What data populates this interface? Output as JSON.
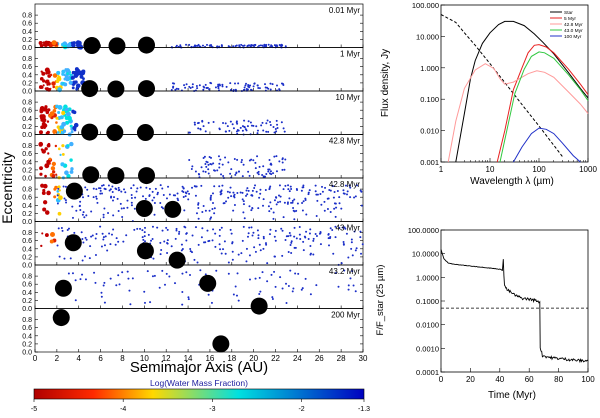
{
  "chart_data": [
    {
      "type": "scatter",
      "title": "",
      "xlabel": "Semimajor Axis (AU)",
      "ylabel": "Eccentricity",
      "xlim": [
        0,
        30
      ],
      "ylim": [
        0,
        1
      ],
      "xticks": [
        0,
        2,
        4,
        6,
        8,
        10,
        12,
        14,
        16,
        18,
        20,
        22,
        24,
        26,
        28,
        30
      ],
      "yticks": [
        0.0,
        0.2,
        0.4,
        0.6,
        0.8
      ],
      "panels": [
        {
          "time_label": "0.01 Myr",
          "giant_planets": [
            {
              "a": 5.2,
              "e": 0.05
            },
            {
              "a": 7.5,
              "e": 0.04
            },
            {
              "a": 10.2,
              "e": 0.06
            }
          ],
          "inner_disk": {
            "a_range": [
              0.5,
              4.5
            ],
            "e_max": 0.12,
            "count": 55
          },
          "outer_disk": {
            "a_range": [
              12.5,
              23.0
            ],
            "e_max": 0.07,
            "count": 95
          }
        },
        {
          "time_label": "1 Myr",
          "giant_planets": [
            {
              "a": 5.0,
              "e": 0.06
            },
            {
              "a": 7.4,
              "e": 0.05
            },
            {
              "a": 10.2,
              "e": 0.06
            }
          ],
          "inner_disk": {
            "a_range": [
              0.5,
              4.5
            ],
            "e_max": 0.55,
            "count": 85
          },
          "outer_disk": {
            "a_range": [
              12.5,
              23.0
            ],
            "e_max": 0.2,
            "count": 90
          }
        },
        {
          "time_label": "10 Myr",
          "giant_planets": [
            {
              "a": 5.0,
              "e": 0.06
            },
            {
              "a": 7.3,
              "e": 0.05
            },
            {
              "a": 10.1,
              "e": 0.05
            }
          ],
          "inner_disk": {
            "a_range": [
              0.5,
              3.8
            ],
            "e_max": 0.7,
            "count": 80
          },
          "outer_disk": {
            "a_range": [
              14.0,
              23.0
            ],
            "e_max": 0.35,
            "count": 70
          }
        },
        {
          "time_label": "42.8 Myr",
          "giant_planets": [
            {
              "a": 5.1,
              "e": 0.08
            },
            {
              "a": 7.4,
              "e": 0.06
            },
            {
              "a": 10.2,
              "e": 0.06
            }
          ],
          "inner_disk": {
            "a_range": [
              0.5,
              3.4
            ],
            "e_max": 0.85,
            "count": 40
          },
          "outer_disk": {
            "a_range": [
              14.0,
              23.0
            ],
            "e_max": 0.55,
            "count": 90
          }
        },
        {
          "time_label": "42.8 Myr",
          "giant_planets": [
            {
              "a": 3.6,
              "e": 0.75
            },
            {
              "a": 10.0,
              "e": 0.32
            },
            {
              "a": 12.6,
              "e": 0.3
            }
          ],
          "inner_disk": {
            "a_range": [
              0.5,
              2.5
            ],
            "e_max": 0.9,
            "count": 18
          },
          "outer_disk": {
            "a_range": [
              2.0,
              30.0
            ],
            "e_max": 0.9,
            "count": 320
          }
        },
        {
          "time_label": "43 Myr",
          "giant_planets": [
            {
              "a": 3.5,
              "e": 0.55
            },
            {
              "a": 10.1,
              "e": 0.35
            },
            {
              "a": 13.0,
              "e": 0.12
            }
          ],
          "inner_disk": {
            "a_range": [
              0.5,
              1.8
            ],
            "e_max": 0.8,
            "count": 6
          },
          "outer_disk": {
            "a_range": [
              2.0,
              30.0
            ],
            "e_max": 0.95,
            "count": 240
          }
        },
        {
          "time_label": "43.2 Myr",
          "giant_planets": [
            {
              "a": 2.6,
              "e": 0.5
            },
            {
              "a": 15.8,
              "e": 0.62
            },
            {
              "a": 20.5,
              "e": 0.06
            }
          ],
          "outer_disk": {
            "a_range": [
              3.0,
              30.0
            ],
            "e_max": 0.95,
            "count": 95
          }
        },
        {
          "time_label": "200 Myr",
          "giant_planets": [
            {
              "a": 2.4,
              "e": 0.85
            },
            {
              "a": 17.0,
              "e": 0.2
            }
          ]
        }
      ],
      "colorbar": {
        "label": "Log(Water Mass Fraction)",
        "range": [
          -5,
          -1.3
        ],
        "ticks": [
          "-5",
          "-4",
          "-3",
          "-2",
          "-1.3"
        ],
        "colors": [
          "#b00000",
          "#ff2a00",
          "#ffd800",
          "#00e0e0",
          "#0000c0"
        ]
      }
    },
    {
      "type": "line",
      "title": "",
      "xlabel": "Wavelength λ (µm)",
      "ylabel": "Flux density, Jy",
      "xscale": "log",
      "yscale": "log",
      "xlim": [
        1,
        1000
      ],
      "ylim": [
        0.001,
        100
      ],
      "xticks": [
        "1",
        "10",
        "100",
        "1000"
      ],
      "yticks": [
        "0.001",
        "0.010",
        "0.100",
        "1.000",
        "10.000",
        "100.000"
      ],
      "legend_position": "top-right",
      "series": [
        {
          "name": "Star",
          "color": "#000000",
          "style": "dashed",
          "points": [
            [
              1,
              50
            ],
            [
              2,
              28
            ],
            [
              3,
              13
            ],
            [
              5,
              5.2
            ],
            [
              10,
              1.35
            ],
            [
              20,
              0.34
            ],
            [
              50,
              0.055
            ],
            [
              100,
              0.014
            ],
            [
              300,
              0.0015
            ],
            [
              500,
              0.00055
            ]
          ]
        },
        {
          "name": "Total",
          "color": "#000000",
          "style": "solid",
          "points": [
            [
              2,
              0.001
            ],
            [
              3,
              0.035
            ],
            [
              4,
              0.45
            ],
            [
              5,
              1.7
            ],
            [
              7,
              6
            ],
            [
              10,
              13
            ],
            [
              15,
              24
            ],
            [
              20,
              30
            ],
            [
              30,
              30
            ],
            [
              50,
              22
            ],
            [
              80,
              12
            ],
            [
              120,
              6.5
            ],
            [
              200,
              2.8
            ],
            [
              400,
              0.7
            ],
            [
              700,
              0.22
            ],
            [
              1000,
              0.11
            ]
          ]
        },
        {
          "name": "5 Myr",
          "color": "#e82020",
          "style": "solid",
          "points": [
            [
              14,
              0.001
            ],
            [
              20,
              0.01
            ],
            [
              30,
              0.2
            ],
            [
              45,
              1.0
            ],
            [
              60,
              3.0
            ],
            [
              80,
              5.2
            ],
            [
              100,
              5.5
            ],
            [
              140,
              4.6
            ],
            [
              200,
              3.0
            ],
            [
              400,
              0.9
            ],
            [
              700,
              0.3
            ],
            [
              1000,
              0.14
            ]
          ]
        },
        {
          "name": "42.8 Myr",
          "color": "#ff9a9a",
          "style": "solid",
          "points": [
            [
              1.4,
              0.001
            ],
            [
              2,
              0.02
            ],
            [
              3,
              0.22
            ],
            [
              5,
              0.85
            ],
            [
              8,
              1.35
            ],
            [
              12,
              0.95
            ],
            [
              16,
              0.45
            ],
            [
              20,
              0.3
            ],
            [
              30,
              0.35
            ],
            [
              60,
              0.65
            ],
            [
              90,
              0.8
            ],
            [
              130,
              0.72
            ],
            [
              200,
              0.5
            ],
            [
              400,
              0.17
            ],
            [
              700,
              0.07
            ],
            [
              1000,
              0.035
            ]
          ]
        },
        {
          "name": "43.0 Myr",
          "color": "#30c840",
          "style": "solid",
          "points": [
            [
              16,
              0.001
            ],
            [
              22,
              0.01
            ],
            [
              32,
              0.15
            ],
            [
              50,
              0.9
            ],
            [
              70,
              2.3
            ],
            [
              100,
              3.2
            ],
            [
              130,
              3.0
            ],
            [
              200,
              2.0
            ],
            [
              400,
              0.6
            ],
            [
              700,
              0.2
            ],
            [
              1000,
              0.09
            ]
          ]
        },
        {
          "name": "100 Myr",
          "color": "#2030c8",
          "style": "solid",
          "points": [
            [
              30,
              0.001
            ],
            [
              45,
              0.003
            ],
            [
              70,
              0.008
            ],
            [
              100,
              0.012
            ],
            [
              140,
              0.011
            ],
            [
              200,
              0.008
            ],
            [
              300,
              0.004
            ],
            [
              500,
              0.0016
            ],
            [
              700,
              0.001
            ]
          ]
        }
      ]
    },
    {
      "type": "line",
      "title": "",
      "xlabel": "Time (Myr)",
      "ylabel": "F/F_star (25 µm)",
      "yscale": "log",
      "xlim": [
        0,
        100
      ],
      "ylim": [
        0.0001,
        100
      ],
      "xticks": [
        "0",
        "20",
        "40",
        "60",
        "80",
        "100"
      ],
      "yticks": [
        "0.0001",
        "0.0010",
        "0.0100",
        "0.1000",
        "1.0000",
        "10.0000",
        "100.0000"
      ],
      "reference_line": {
        "y": 0.05,
        "style": "dashed"
      },
      "series": [
        {
          "name": "excess",
          "color": "#000000",
          "style": "solid",
          "points": [
            [
              0,
              15
            ],
            [
              2,
              6
            ],
            [
              5,
              4
            ],
            [
              10,
              3.5
            ],
            [
              20,
              3.0
            ],
            [
              30,
              2.6
            ],
            [
              40,
              2.2
            ],
            [
              41.8,
              2.0
            ],
            [
              42.4,
              6.0
            ],
            [
              42.8,
              1.2
            ],
            [
              43.2,
              0.45
            ],
            [
              45,
              0.3
            ],
            [
              50,
              0.18
            ],
            [
              55,
              0.13
            ],
            [
              60,
              0.12
            ],
            [
              66,
              0.1
            ],
            [
              67.2,
              0.09
            ],
            [
              67.5,
              0.0011
            ],
            [
              69,
              0.0005
            ],
            [
              75,
              0.0004
            ],
            [
              85,
              0.00035
            ],
            [
              95,
              0.0003
            ],
            [
              100,
              0.0003
            ]
          ]
        }
      ]
    }
  ]
}
